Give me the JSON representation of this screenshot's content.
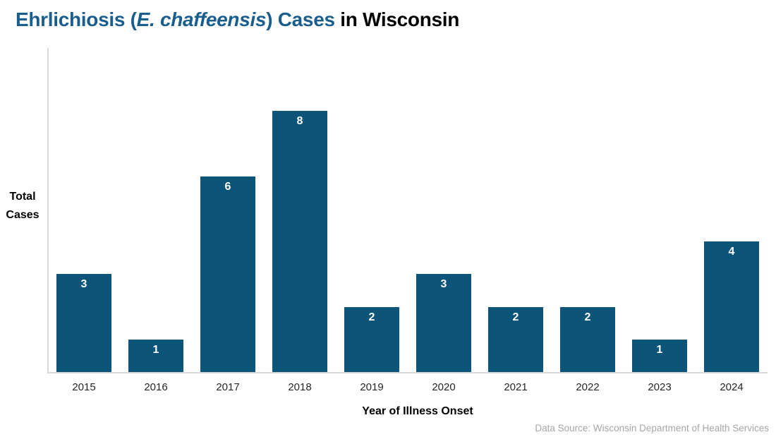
{
  "title": {
    "prefix": "Ehrlichiosis (",
    "species": "E. chaffeensis",
    "mid": ") Cases",
    "location": " in Wisconsin"
  },
  "y_axis": {
    "label_line1": "Total",
    "label_line2": "Cases"
  },
  "x_axis": {
    "title": "Year of Illness Onset"
  },
  "source": {
    "text": "Data Source: Wisconsin Department of Health Services"
  },
  "colors": {
    "bar": "#0d5578",
    "title_accent": "#1a5e8e",
    "title_plain": "#000000",
    "axis_line": "#d9d9d9",
    "tick_label": "#262626",
    "value_label": "#ffffff",
    "source_text": "#a6a6a6"
  },
  "chart_data": {
    "type": "bar",
    "title": "Ehrlichiosis (E. chaffeensis) Cases in Wisconsin",
    "categories": [
      "2015",
      "2016",
      "2017",
      "2018",
      "2019",
      "2020",
      "2021",
      "2022",
      "2023",
      "2024"
    ],
    "values": [
      3,
      1,
      6,
      8,
      2,
      3,
      2,
      2,
      1,
      4
    ],
    "xlabel": "Year of Illness Onset",
    "ylabel": "Total Cases",
    "ylim": [
      0,
      10
    ],
    "grid": false,
    "legend": false,
    "bar_color": "#0d5578",
    "value_labels": "inside-top-white"
  }
}
